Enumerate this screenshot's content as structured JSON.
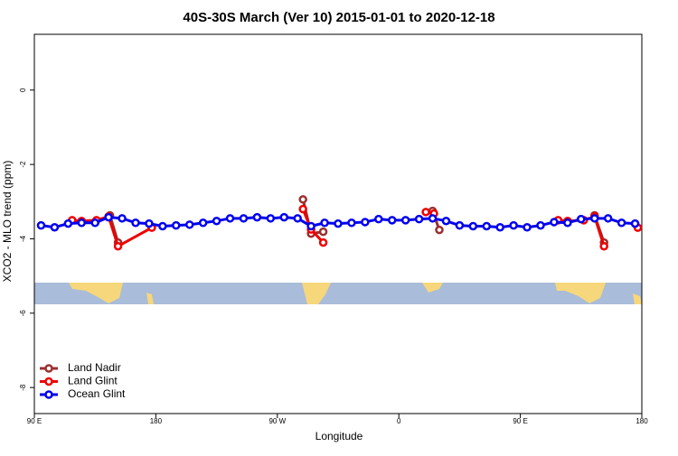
{
  "chart_data": {
    "type": "line",
    "title": "40S-30S March (Ver 10)   2015-01-01 to 2020-12-18",
    "x_label": "Longitude",
    "y_label": "XCO2 - MLO trend (ppm)",
    "xlim": [
      90,
      540
    ],
    "ylim": [
      -8.7,
      1.5
    ],
    "xticks": [
      {
        "value": 90,
        "label": "90 E"
      },
      180,
      {
        "value": 270,
        "label": "90 W"
      },
      {
        "value": 360,
        "label": "0"
      },
      {
        "value": 450,
        "label": "90 E"
      },
      {
        "value": 540,
        "label": "180"
      }
    ],
    "yticks": [
      0,
      -2,
      -4,
      -6,
      -8
    ],
    "legend": "bottom-left",
    "series": [
      {
        "name": "Land Nadir",
        "color": "#9b2f2f",
        "x": [
          146,
          152,
          null,
          289,
          295,
          304,
          null,
          385,
          390,
          null,
          505,
          512
        ],
        "values": [
          -3.37,
          -4.1,
          null,
          -2.94,
          -3.86,
          -3.81,
          null,
          -3.25,
          -3.76,
          null,
          -3.37,
          -4.1
        ]
      },
      {
        "name": "Land Glint",
        "color": "#ee0000",
        "x": [
          118,
          125,
          136,
          145,
          152,
          177,
          null,
          289,
          295,
          304,
          null,
          380,
          386,
          null,
          478,
          485,
          497,
          505,
          512,
          null,
          537
        ],
        "values": [
          -3.5,
          -3.52,
          -3.5,
          -3.4,
          -4.2,
          -3.7,
          null,
          -3.2,
          -3.75,
          -4.1,
          null,
          -3.28,
          -3.32,
          null,
          -3.5,
          -3.52,
          -3.5,
          -3.4,
          -4.2,
          null,
          -3.7
        ]
      },
      {
        "name": "Ocean Glint",
        "color": "#0000ee",
        "x": [
          95,
          105,
          115,
          125,
          135,
          145,
          155,
          165,
          175,
          185,
          195,
          205,
          215,
          225,
          235,
          245,
          255,
          265,
          275,
          285,
          295,
          305,
          315,
          325,
          335,
          345,
          355,
          365,
          375,
          385,
          395,
          405,
          415,
          425,
          435,
          445,
          455,
          465,
          475,
          485,
          495,
          505,
          515,
          525,
          535
        ],
        "values": [
          -3.64,
          -3.69,
          -3.59,
          -3.57,
          -3.57,
          -3.42,
          -3.45,
          -3.57,
          -3.59,
          -3.66,
          -3.64,
          -3.62,
          -3.57,
          -3.52,
          -3.45,
          -3.45,
          -3.42,
          -3.45,
          -3.42,
          -3.45,
          -3.66,
          -3.57,
          -3.59,
          -3.57,
          -3.55,
          -3.47,
          -3.5,
          -3.5,
          -3.47,
          -3.45,
          -3.52,
          -3.64,
          -3.66,
          -3.66,
          -3.69,
          -3.64,
          -3.69,
          -3.64,
          -3.55,
          -3.57,
          -3.47,
          -3.45,
          -3.45,
          -3.57,
          -3.59
        ]
      }
    ]
  }
}
